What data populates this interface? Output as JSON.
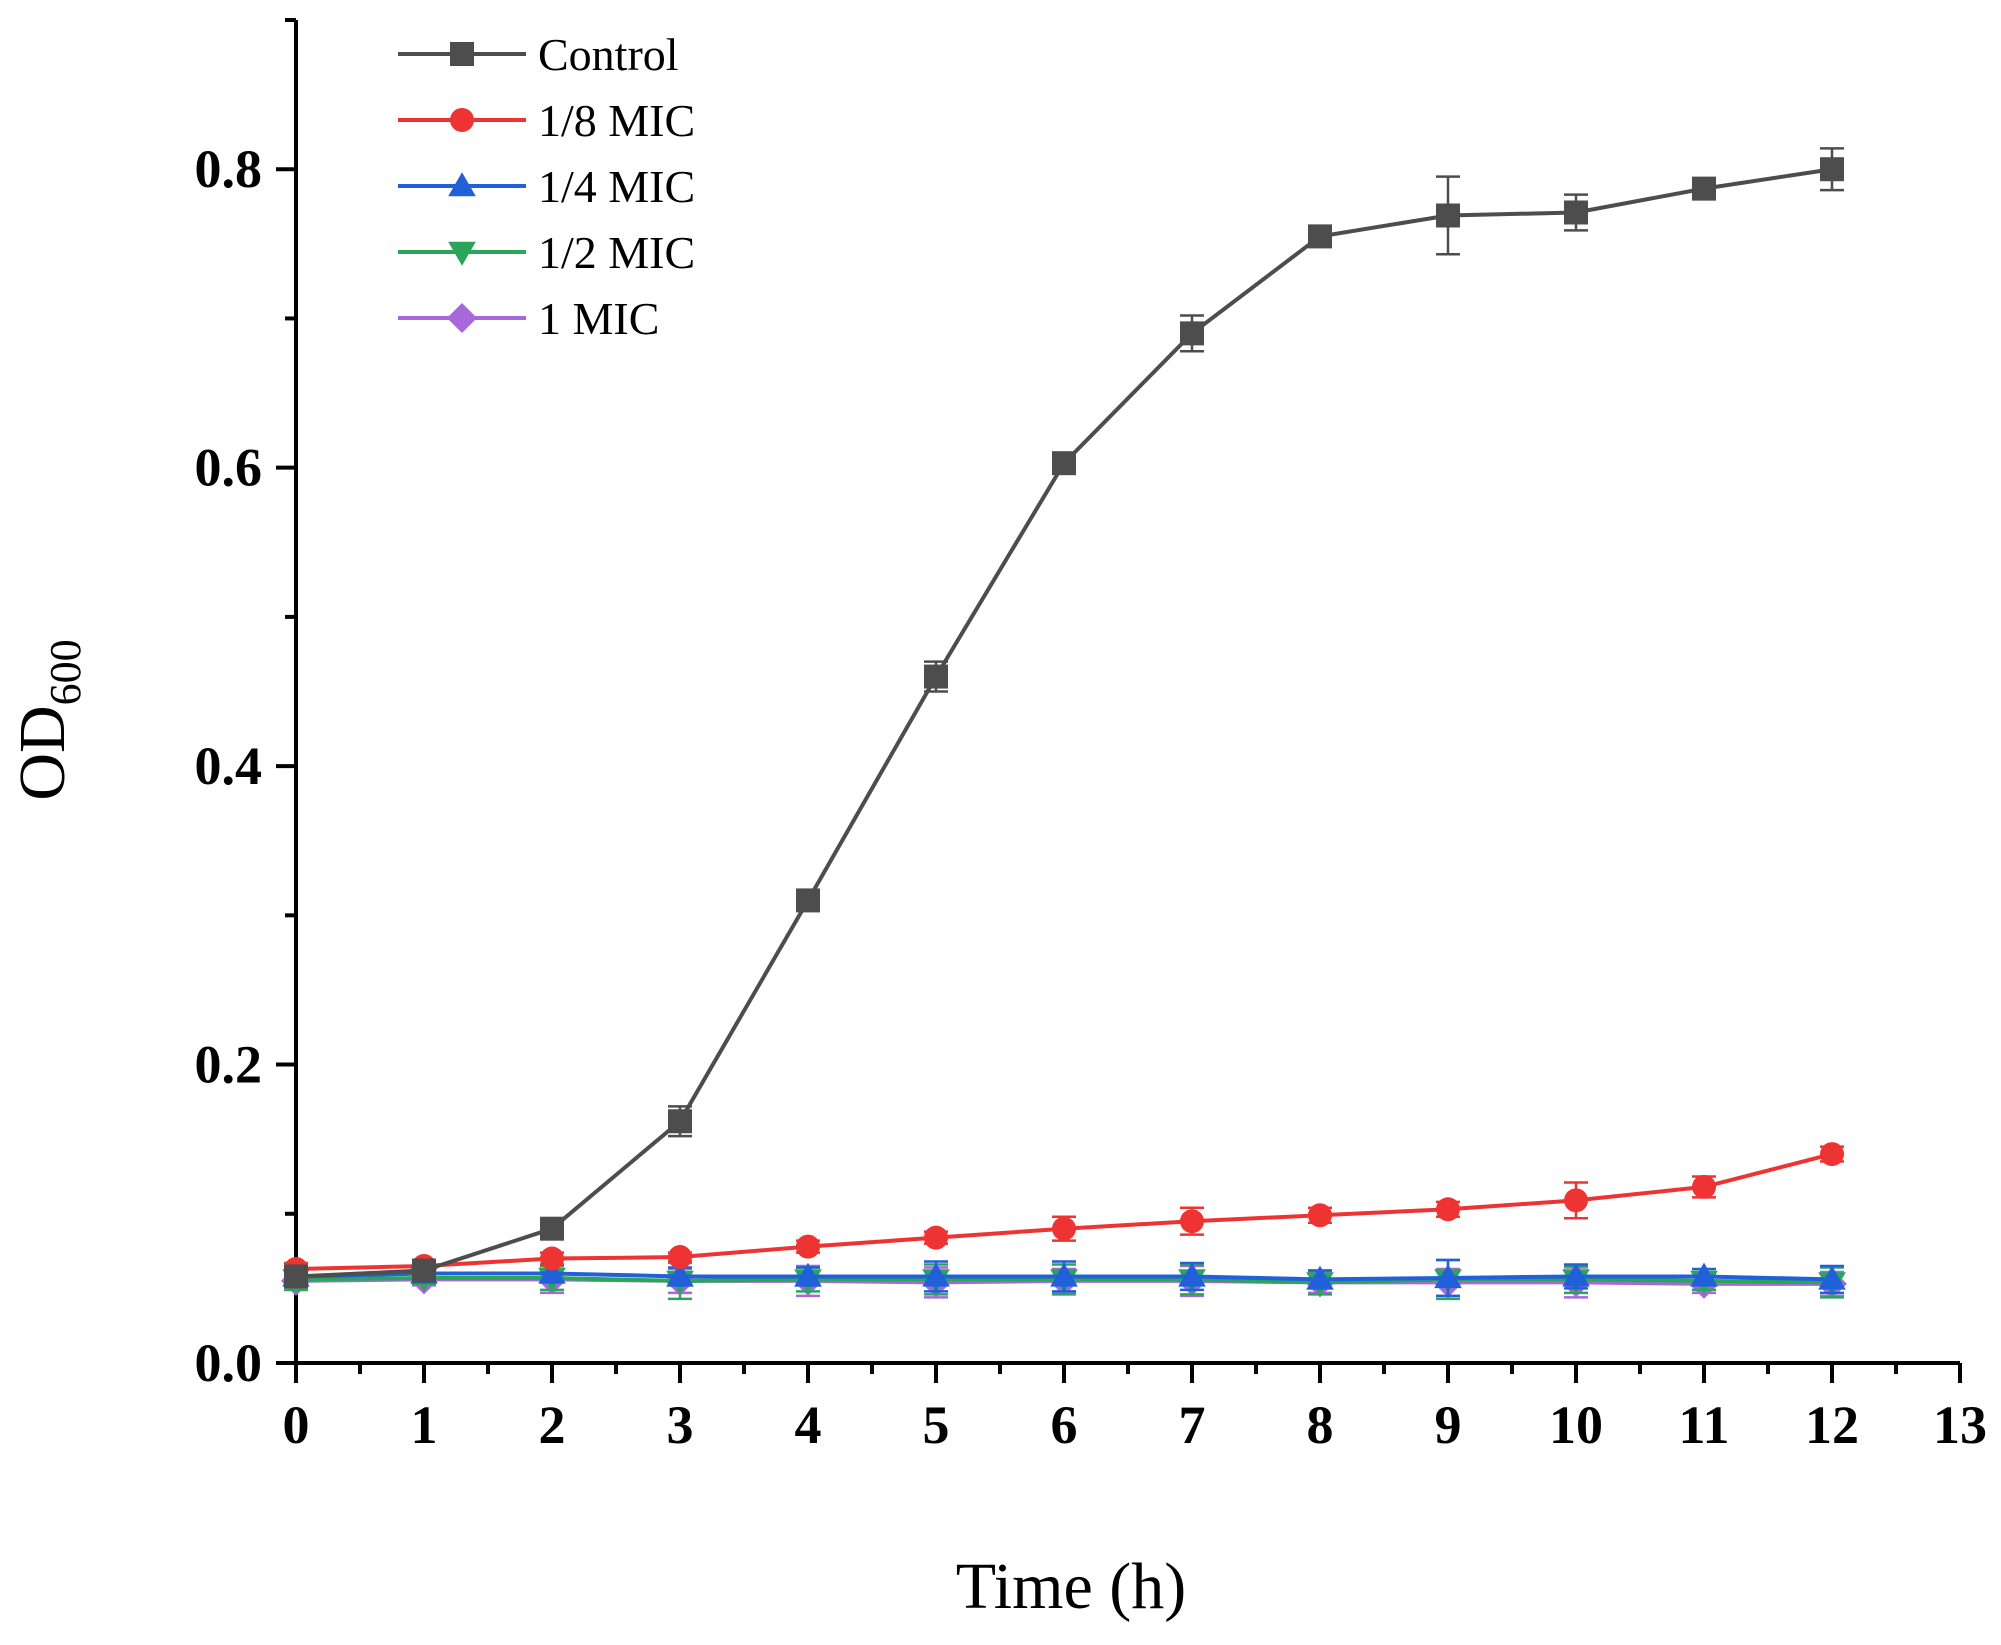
{
  "chart_data": {
    "type": "line",
    "title": "",
    "xlabel": "Time (h)",
    "ylabel": {
      "main": "OD",
      "subscript": "600"
    },
    "xlim": [
      0,
      13
    ],
    "ylim": [
      0,
      0.9
    ],
    "xticks": [
      0,
      1,
      2,
      3,
      4,
      5,
      6,
      7,
      8,
      9,
      10,
      11,
      12,
      13
    ],
    "xtick_labels": [
      "0",
      "1",
      "2",
      "3",
      "4",
      "5",
      "6",
      "7",
      "8",
      "9",
      "10",
      "11",
      "12",
      "13"
    ],
    "yticks": [
      0.0,
      0.2,
      0.4,
      0.6,
      0.8
    ],
    "ytick_labels": [
      "0.0",
      "0.2",
      "0.4",
      "0.6",
      "0.8"
    ],
    "grid": false,
    "legend_position": "top-left",
    "x": [
      0,
      1,
      2,
      3,
      4,
      5,
      6,
      7,
      8,
      9,
      10,
      11,
      12
    ],
    "series": [
      {
        "name": "Control",
        "color": "#4d4d4d",
        "marker": "square",
        "values": [
          0.058,
          0.062,
          0.09,
          0.162,
          0.31,
          0.46,
          0.603,
          0.69,
          0.755,
          0.769,
          0.771,
          0.787,
          0.8
        ],
        "errors": [
          0.004,
          0.004,
          0.005,
          0.01,
          0.006,
          0.01,
          0.005,
          0.012,
          0.007,
          0.026,
          0.012,
          0.005,
          0.014
        ]
      },
      {
        "name": "1/8 MIC",
        "color": "#ee3333",
        "marker": "circle",
        "values": [
          0.063,
          0.065,
          0.07,
          0.071,
          0.078,
          0.084,
          0.09,
          0.095,
          0.099,
          0.103,
          0.109,
          0.118,
          0.14
        ],
        "errors": [
          0.004,
          0.003,
          0.004,
          0.003,
          0.004,
          0.004,
          0.008,
          0.009,
          0.005,
          0.005,
          0.012,
          0.007,
          0.005
        ]
      },
      {
        "name": "1/4 MIC",
        "color": "#2060d8",
        "marker": "triangle-up",
        "values": [
          0.058,
          0.06,
          0.06,
          0.058,
          0.058,
          0.058,
          0.058,
          0.058,
          0.056,
          0.057,
          0.058,
          0.058,
          0.056
        ],
        "errors": [
          0.006,
          0.004,
          0.006,
          0.006,
          0.006,
          0.01,
          0.01,
          0.009,
          0.006,
          0.012,
          0.008,
          0.005,
          0.009
        ]
      },
      {
        "name": "1/2 MIC",
        "color": "#2aa55a",
        "marker": "triangle-down",
        "values": [
          0.056,
          0.057,
          0.057,
          0.055,
          0.056,
          0.056,
          0.056,
          0.056,
          0.054,
          0.056,
          0.056,
          0.055,
          0.054
        ],
        "errors": [
          0.007,
          0.004,
          0.008,
          0.012,
          0.008,
          0.01,
          0.01,
          0.01,
          0.008,
          0.013,
          0.009,
          0.006,
          0.01
        ]
      },
      {
        "name": "1 MIC",
        "color": "#a868dc",
        "marker": "diamond",
        "values": [
          0.055,
          0.056,
          0.056,
          0.055,
          0.055,
          0.054,
          0.055,
          0.055,
          0.054,
          0.054,
          0.054,
          0.053,
          0.053
        ],
        "errors": [
          0.006,
          0.004,
          0.009,
          0.008,
          0.01,
          0.01,
          0.008,
          0.01,
          0.007,
          0.009,
          0.01,
          0.006,
          0.008
        ]
      }
    ]
  }
}
